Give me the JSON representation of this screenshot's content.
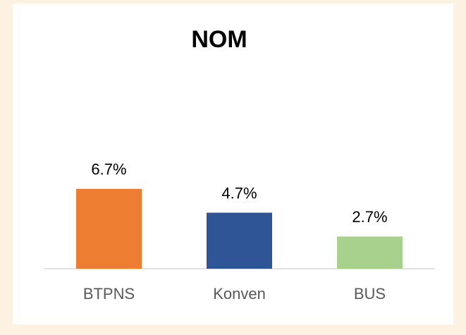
{
  "chart_data": {
    "type": "bar",
    "title": "NOM",
    "categories": [
      "BTPNS",
      "Konven",
      "BUS"
    ],
    "values": [
      6.7,
      4.7,
      2.7
    ],
    "value_labels": [
      "6.7%",
      "4.7%",
      "2.7%"
    ],
    "colors": [
      "#ed7d31",
      "#2f5597",
      "#a9d18e"
    ],
    "ylim": [
      0,
      10
    ]
  }
}
